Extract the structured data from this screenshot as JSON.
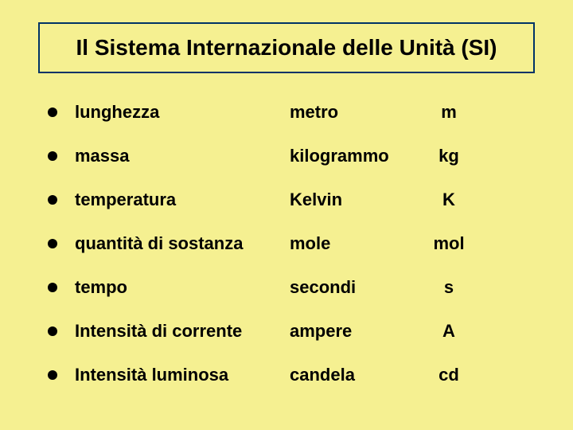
{
  "background_color": "#f5f091",
  "title_border_color": "#003366",
  "text_color": "#000000",
  "title": "Il Sistema Internazionale delle Unità (SI)",
  "title_fontsize": 28,
  "row_fontsize": 22,
  "rows": [
    {
      "quantity": "lunghezza",
      "unit": "metro",
      "symbol": "m"
    },
    {
      "quantity": "massa",
      "unit": "kilogrammo",
      "symbol": "kg"
    },
    {
      "quantity": "temperatura",
      "unit": "Kelvin",
      "symbol": "K"
    },
    {
      "quantity": "quantità di sostanza",
      "unit": "mole",
      "symbol": "mol"
    },
    {
      "quantity": "tempo",
      "unit": "secondi",
      "symbol": "s"
    },
    {
      "quantity": "Intensità di corrente",
      "unit": "ampere",
      "symbol": "A"
    },
    {
      "quantity": "Intensità luminosa",
      "unit": "candela",
      "symbol": "cd"
    }
  ]
}
